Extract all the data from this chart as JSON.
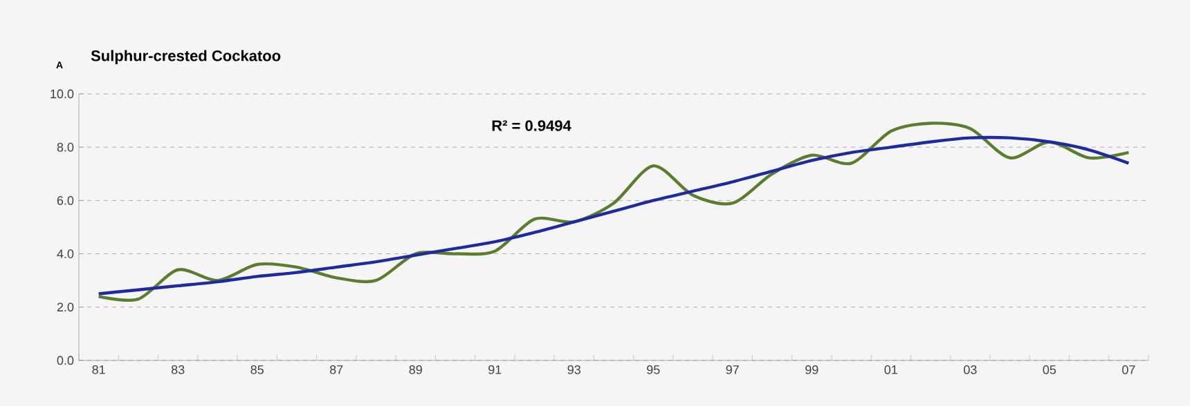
{
  "chart_data": {
    "type": "line",
    "title": "Sulphur-crested Cockatoo",
    "categories": [
      "81",
      null,
      "83",
      null,
      "85",
      null,
      "87",
      null,
      "89",
      null,
      "91",
      null,
      "93",
      null,
      "95",
      null,
      "97",
      null,
      "99",
      null,
      "01",
      null,
      "03",
      null,
      "05",
      null,
      "07"
    ],
    "series": [
      {
        "color": "#5b7d2e",
        "values": [
          2.4,
          2.3,
          3.4,
          3.0,
          3.6,
          3.5,
          3.1,
          3.0,
          4.0,
          4.0,
          4.1,
          5.3,
          5.2,
          5.9,
          7.3,
          6.2,
          5.9,
          7.0,
          7.7,
          7.4,
          8.6,
          8.9,
          8.7,
          7.6,
          8.2,
          7.6,
          7.8
        ]
      },
      {
        "color": "#1f2a9e",
        "values": [
          2.5,
          2.65,
          2.8,
          2.95,
          3.15,
          3.3,
          3.5,
          3.7,
          3.95,
          4.2,
          4.45,
          4.8,
          5.2,
          5.6,
          6.0,
          6.35,
          6.7,
          7.1,
          7.5,
          7.8,
          8.0,
          8.2,
          8.35,
          8.35,
          8.2,
          7.9,
          7.4
        ]
      }
    ],
    "ylim": [
      0,
      10
    ],
    "yticks": [
      {
        "value": 0,
        "label": "0.0"
      },
      {
        "value": 2,
        "label": "2.0"
      },
      {
        "value": 4,
        "label": "4.0"
      },
      {
        "value": 6,
        "label": "6.0"
      },
      {
        "value": 8,
        "label": "8.0"
      },
      {
        "value": 10,
        "label": "10.0"
      }
    ],
    "grid": "y",
    "legend": false,
    "annotations": [
      "A",
      "R² = 0.9494"
    ]
  }
}
